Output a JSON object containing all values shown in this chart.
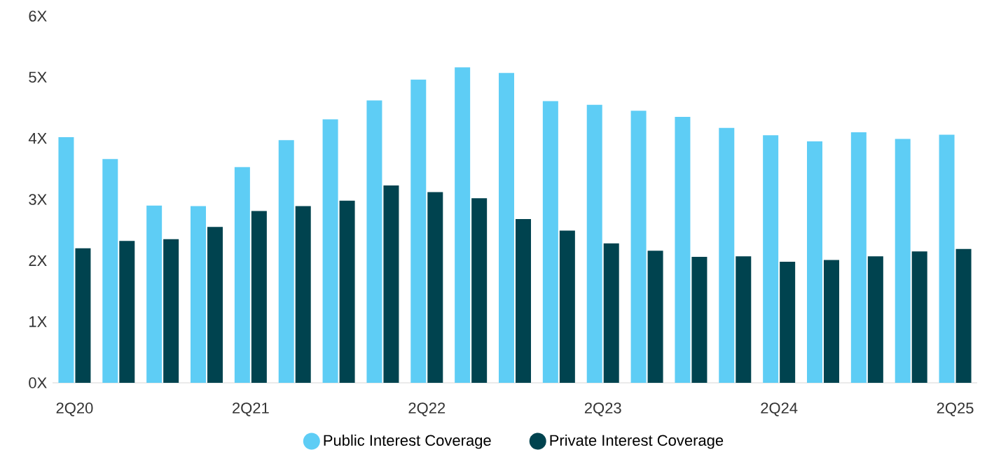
{
  "chart_data": {
    "type": "bar",
    "categories": [
      "2Q20",
      null,
      null,
      null,
      "2Q21",
      null,
      null,
      null,
      "2Q22",
      null,
      null,
      null,
      "2Q23",
      null,
      null,
      null,
      "2Q24",
      null,
      null,
      null,
      "2Q25"
    ],
    "series": [
      {
        "name": "Public Interest Coverage",
        "color": "#5ecdf5",
        "values": [
          4.02,
          3.66,
          2.9,
          2.89,
          3.53,
          3.97,
          4.31,
          4.62,
          4.96,
          5.16,
          5.07,
          4.61,
          4.55,
          4.45,
          4.35,
          4.17,
          4.05,
          3.95,
          4.1,
          3.99,
          4.06
        ]
      },
      {
        "name": "Private Interest Coverage",
        "color": "#00434f",
        "values": [
          2.2,
          2.32,
          2.35,
          2.55,
          2.81,
          2.89,
          2.98,
          3.23,
          3.12,
          3.02,
          2.68,
          2.49,
          2.28,
          2.16,
          2.06,
          2.07,
          1.98,
          2.01,
          2.07,
          2.15,
          2.19
        ]
      }
    ],
    "ylim": [
      0,
      6
    ],
    "yticks": [
      {
        "value": 0,
        "label": "0X"
      },
      {
        "value": 1,
        "label": "1X"
      },
      {
        "value": 2,
        "label": "2X"
      },
      {
        "value": 3,
        "label": "3X"
      },
      {
        "value": 4,
        "label": "4X"
      },
      {
        "value": 5,
        "label": "5X"
      },
      {
        "value": 6,
        "label": "6X"
      }
    ],
    "legend": "bottom"
  }
}
